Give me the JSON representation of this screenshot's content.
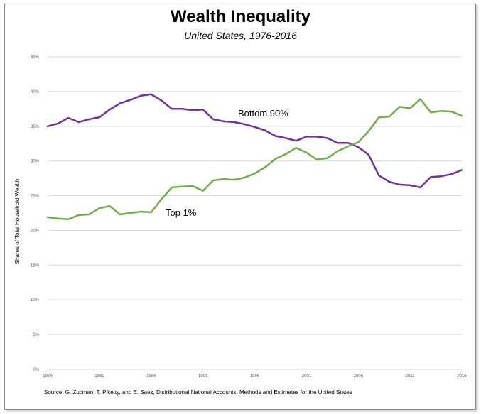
{
  "header": {
    "title": "Wealth Inequality",
    "subtitle": "United States, 1976-2016"
  },
  "footer": {
    "source": "Source: G. Zucman, T. Piketty, and E. Saez, Distributional National Accounts: Methods and Estimates for the United States"
  },
  "colors": {
    "bottom90": "#7030a0",
    "top1": "#70ad47",
    "gridline": "#d9d9d9",
    "axis_text": "#595959"
  },
  "chart_data": {
    "type": "line",
    "title": "Wealth Inequality",
    "subtitle": "United States, 1976-2016",
    "ylabel": "Shares of Total Household Wealth",
    "xlabel": "",
    "ylim": [
      0,
      45
    ],
    "xlim": [
      1976,
      2016
    ],
    "yticks": [
      "0%",
      "5%",
      "10%",
      "15%",
      "20%",
      "25%",
      "30%",
      "35%",
      "40%",
      "45%"
    ],
    "xticks": [
      "1976",
      "1981",
      "1986",
      "1991",
      "1996",
      "2001",
      "2006",
      "2011",
      "2016"
    ],
    "grid": true,
    "x": [
      1976,
      1977,
      1978,
      1979,
      1980,
      1981,
      1982,
      1983,
      1984,
      1985,
      1986,
      1987,
      1988,
      1989,
      1990,
      1991,
      1992,
      1993,
      1994,
      1995,
      1996,
      1997,
      1998,
      1999,
      2000,
      2001,
      2002,
      2003,
      2004,
      2005,
      2006,
      2007,
      2008,
      2009,
      2010,
      2011,
      2012,
      2013,
      2014,
      2015,
      2016
    ],
    "series": [
      {
        "name": "Bottom 90%",
        "color": "#7030a0",
        "values": [
          35.0,
          35.4,
          36.2,
          35.6,
          36.0,
          36.3,
          37.4,
          38.3,
          38.8,
          39.4,
          39.6,
          38.7,
          37.5,
          37.5,
          37.3,
          37.4,
          36.0,
          35.7,
          35.6,
          35.3,
          34.9,
          34.4,
          33.6,
          33.3,
          32.9,
          33.5,
          33.5,
          33.3,
          32.6,
          32.6,
          32.0,
          30.9,
          27.9,
          27.0,
          26.6,
          26.5,
          26.2,
          27.7,
          27.8,
          28.1,
          28.7
        ]
      },
      {
        "name": "Top 1%",
        "color": "#70ad47",
        "values": [
          21.9,
          21.7,
          21.6,
          22.2,
          22.3,
          23.2,
          23.5,
          22.3,
          22.5,
          22.7,
          22.6,
          24.5,
          26.2,
          26.3,
          26.4,
          25.7,
          27.2,
          27.4,
          27.3,
          27.6,
          28.2,
          29.1,
          30.3,
          31.0,
          31.9,
          31.2,
          30.2,
          30.4,
          31.4,
          32.1,
          32.7,
          34.3,
          36.3,
          36.4,
          37.8,
          37.6,
          38.9,
          37.0,
          37.2,
          37.1,
          36.5
        ]
      }
    ],
    "annotations": [
      {
        "text": "Bottom 90%",
        "series": "Bottom 90%"
      },
      {
        "text": "Top 1%",
        "series": "Top 1%"
      }
    ]
  }
}
